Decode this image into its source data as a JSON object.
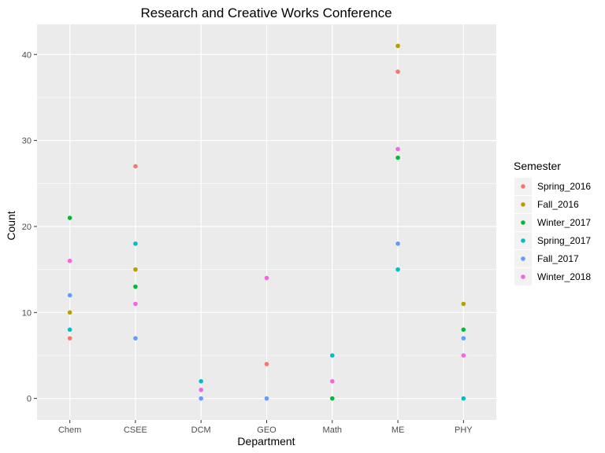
{
  "chart_data": {
    "type": "scatter",
    "title": "Research and Creative Works Conference",
    "xlabel": "Department",
    "ylabel": "Count",
    "categories": [
      "Chem",
      "CSEE",
      "DCM",
      "GEO",
      "Math",
      "ME",
      "PHY"
    ],
    "ylim": [
      -2.5,
      43.5
    ],
    "yticks": [
      0,
      10,
      20,
      30,
      40
    ],
    "grid": true,
    "legend_title": "Semester",
    "legend_position": "right",
    "series": [
      {
        "name": "Spring_2016",
        "color": "#F8766D",
        "values": [
          7,
          27,
          null,
          4,
          null,
          38,
          null
        ]
      },
      {
        "name": "Fall_2016",
        "color": "#B79F00",
        "values": [
          10,
          15,
          null,
          null,
          null,
          41,
          11
        ]
      },
      {
        "name": "Winter_2017",
        "color": "#00BA38",
        "values": [
          21,
          13,
          null,
          null,
          0,
          28,
          8
        ]
      },
      {
        "name": "Spring_2017",
        "color": "#00BFC4",
        "values": [
          8,
          18,
          2,
          null,
          5,
          15,
          0
        ]
      },
      {
        "name": "Fall_2017",
        "color": "#619CFF",
        "values": [
          12,
          7,
          0,
          0,
          null,
          18,
          7
        ]
      },
      {
        "name": "Winter_2018",
        "color": "#F564E3",
        "values": [
          16,
          11,
          1,
          14,
          2,
          29,
          5
        ]
      }
    ]
  }
}
